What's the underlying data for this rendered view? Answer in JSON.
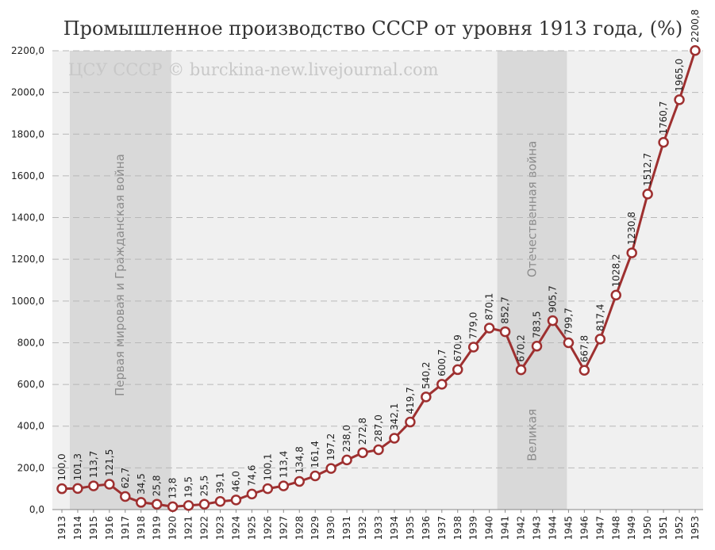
{
  "chart_data": {
    "type": "line",
    "title": "Промышленное производство СССР от уровня 1913 года, (%)",
    "watermark": "ЦСУ СССР © burckina-new.livejournal.com",
    "xlabel": "",
    "ylabel": "",
    "ylim": [
      0,
      2200
    ],
    "yticks": [
      "0,0",
      "200,0",
      "400,0",
      "600,0",
      "800,0",
      "1000,0",
      "1200,0",
      "1400,0",
      "1600,0",
      "1800,0",
      "2000,0",
      "2200,0"
    ],
    "grid": true,
    "colors": {
      "line": "#9e3030",
      "marker_fill": "#ffffff",
      "band": "#d9d9d9",
      "plot_bg": "#f0f0f0"
    },
    "shaded_bands": [
      {
        "from": "1914",
        "to": "1920",
        "label": "Первая мировая и Гражданская война"
      },
      {
        "from": "1941",
        "to": "1945",
        "label": "Великая Отечественная война",
        "label_parts": [
          "Великая",
          "Отечественная война"
        ]
      }
    ],
    "x": [
      "1913",
      "1914",
      "1915",
      "1916",
      "1917",
      "1918",
      "1919",
      "1920",
      "1921",
      "1922",
      "1923",
      "1924",
      "1925",
      "1926",
      "1927",
      "1928",
      "1929",
      "1930",
      "1931",
      "1932",
      "1933",
      "1934",
      "1935",
      "1936",
      "1937",
      "1938",
      "1939",
      "1940",
      "1941",
      "1942",
      "1943",
      "1944",
      "1945",
      "1946",
      "1947",
      "1948",
      "1949",
      "1950",
      "1951",
      "1952",
      "1953"
    ],
    "values": [
      100.0,
      101.3,
      113.7,
      121.5,
      62.7,
      34.5,
      25.8,
      13.8,
      19.5,
      25.5,
      39.1,
      46.0,
      74.6,
      100.1,
      113.4,
      134.8,
      161.4,
      197.2,
      238.0,
      272.8,
      287.0,
      342.1,
      419.7,
      540.2,
      600.7,
      670.9,
      779.0,
      870.1,
      852.7,
      670.2,
      783.5,
      905.7,
      799.7,
      667.8,
      817.4,
      1028.2,
      1230.8,
      1512.7,
      1760.7,
      1965.0,
      2200.8
    ],
    "data_labels": [
      "100,0",
      "101,3",
      "113,7",
      "121,5",
      "62,7",
      "34,5",
      "25,8",
      "13,8",
      "19,5",
      "25,5",
      "39,1",
      "46,0",
      "74,6",
      "100,1",
      "113,4",
      "134,8",
      "161,4",
      "197,2",
      "238,0",
      "272,8",
      "287,0",
      "342,1",
      "419,7",
      "540,2",
      "600,7",
      "670,9",
      "779,0",
      "870,1",
      "852,7",
      "670,2",
      "783,5",
      "905,7",
      "799,7",
      "667,8",
      "817,4",
      "1028,2",
      "1230,8",
      "1512,7",
      "1760,7",
      "1965,0",
      "2200,8"
    ]
  }
}
